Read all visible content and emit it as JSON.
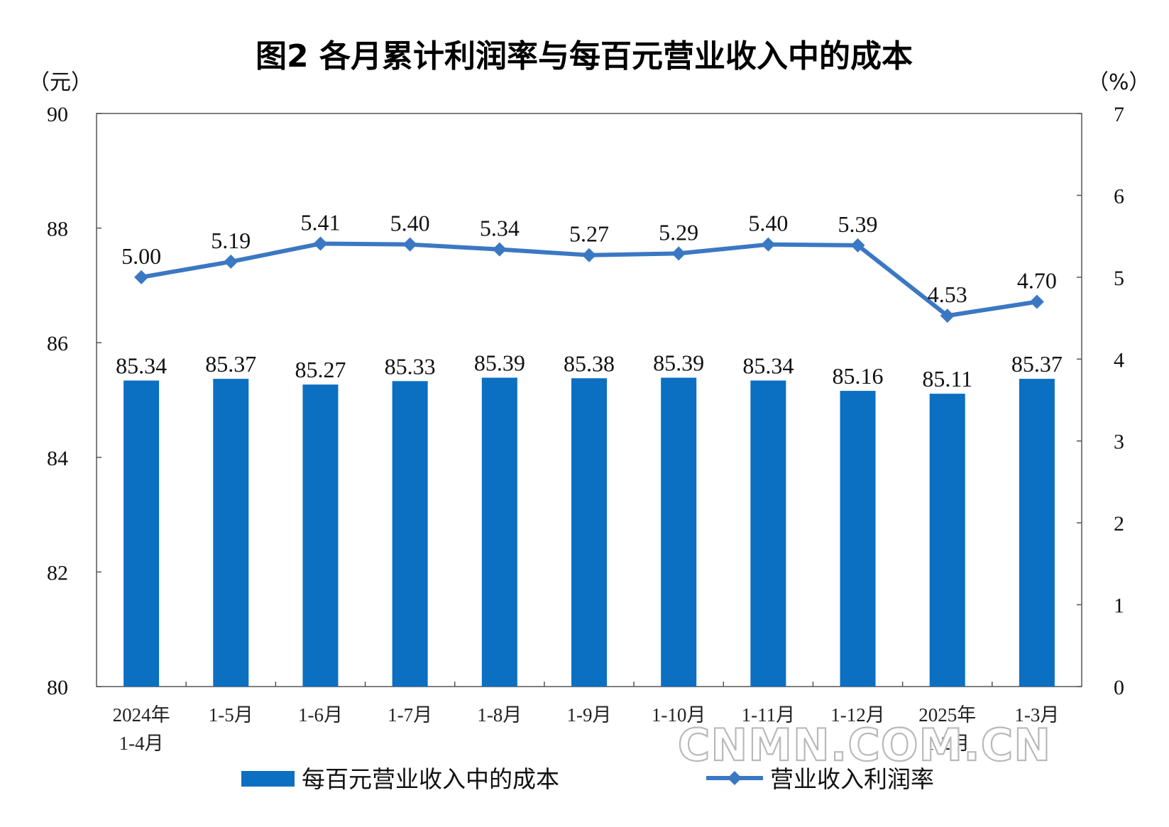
{
  "chart_data": {
    "type": "bar",
    "title": "图2  各月累计利润率与每百元营业收入中的成本",
    "categories": [
      [
        "2024年",
        "1-4月"
      ],
      [
        "1-5月"
      ],
      [
        "1-6月"
      ],
      [
        "1-7月"
      ],
      [
        "1-8月"
      ],
      [
        "1-9月"
      ],
      [
        "1-10月"
      ],
      [
        "1-11月"
      ],
      [
        "1-12月"
      ],
      [
        "2025年",
        "1-2月"
      ],
      [
        "1-3月"
      ]
    ],
    "left_axis": {
      "unit": "（元）",
      "range": [
        80,
        90
      ],
      "ticks": [
        80,
        82,
        84,
        86,
        88,
        90
      ]
    },
    "right_axis": {
      "unit": "（%）",
      "range": [
        0,
        7
      ],
      "ticks": [
        0,
        1,
        2,
        3,
        4,
        5,
        6,
        7
      ]
    },
    "series": [
      {
        "name": "每百元营业收入中的成本",
        "type": "bar",
        "axis": "left",
        "color": "#0b6fc2",
        "values": [
          85.34,
          85.37,
          85.27,
          85.33,
          85.39,
          85.38,
          85.39,
          85.34,
          85.16,
          85.11,
          85.37
        ],
        "labels": [
          "85.34",
          "85.37",
          "85.27",
          "85.33",
          "85.39",
          "85.38",
          "85.39",
          "85.34",
          "85.16",
          "85.11",
          "85.37"
        ]
      },
      {
        "name": "营业收入利润率",
        "type": "line",
        "axis": "right",
        "marker": "diamond",
        "color": "#3b78c3",
        "values": [
          5.0,
          5.19,
          5.41,
          5.4,
          5.34,
          5.27,
          5.29,
          5.4,
          5.39,
          4.53,
          4.7
        ],
        "labels": [
          "5.00",
          "5.19",
          "5.41",
          "5.40",
          "5.34",
          "5.27",
          "5.29",
          "5.40",
          "5.39",
          "4.53",
          "4.70"
        ]
      }
    ],
    "grid": false,
    "legend_position": "bottom"
  },
  "watermark": "CNMN.COM.CN"
}
